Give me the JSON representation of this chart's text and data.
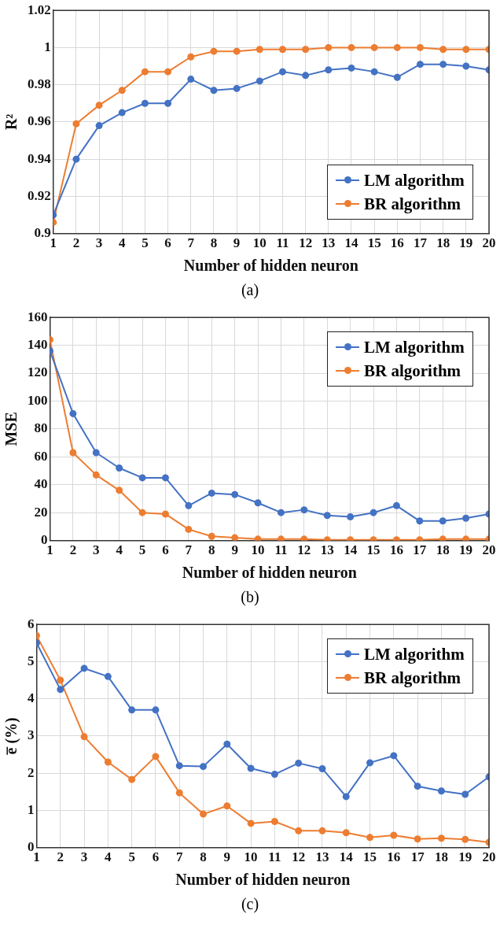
{
  "chart_data": [
    {
      "type": "line",
      "xlabel": "Number of hidden neuron",
      "ylabel": "R²",
      "annotations": [
        "(a)"
      ],
      "x": [
        1,
        2,
        3,
        4,
        5,
        6,
        7,
        8,
        9,
        10,
        11,
        12,
        13,
        14,
        15,
        16,
        17,
        18,
        19,
        20
      ],
      "xlim": [
        1,
        20
      ],
      "xticks": [
        1,
        2,
        3,
        4,
        5,
        6,
        7,
        8,
        9,
        10,
        11,
        12,
        13,
        14,
        15,
        16,
        17,
        18,
        19,
        20
      ],
      "ylim": [
        0.9,
        1.02
      ],
      "yticks": [
        0.9,
        0.92,
        0.94,
        0.96,
        0.98,
        1,
        1.02
      ],
      "grid": true,
      "legend": "bottom right",
      "marker": "circle",
      "line_style": "solid",
      "series": [
        {
          "name": "LM algorithm",
          "color": "#4472c4",
          "values": [
            0.91,
            0.94,
            0.958,
            0.965,
            0.97,
            0.97,
            0.983,
            0.977,
            0.978,
            0.982,
            0.987,
            0.985,
            0.988,
            0.989,
            0.987,
            0.984,
            0.991,
            0.991,
            0.99,
            0.988
          ]
        },
        {
          "name": "BR algorithm",
          "color": "#ed7d31",
          "values": [
            0.906,
            0.959,
            0.969,
            0.977,
            0.987,
            0.987,
            0.995,
            0.998,
            0.998,
            0.999,
            0.999,
            0.999,
            1.0,
            1.0,
            1.0,
            1.0,
            1.0,
            0.999,
            0.999,
            0.999
          ]
        }
      ]
    },
    {
      "type": "line",
      "xlabel": "Number of hidden neuron",
      "ylabel": "MSE",
      "annotations": [
        "(b)"
      ],
      "x": [
        1,
        2,
        3,
        4,
        5,
        6,
        7,
        8,
        9,
        10,
        11,
        12,
        13,
        14,
        15,
        16,
        17,
        18,
        19,
        20
      ],
      "xlim": [
        1,
        20
      ],
      "xticks": [
        1,
        2,
        3,
        4,
        5,
        6,
        7,
        8,
        9,
        10,
        11,
        12,
        13,
        14,
        15,
        16,
        17,
        18,
        19,
        20
      ],
      "ylim": [
        0,
        160
      ],
      "yticks": [
        0,
        20,
        40,
        60,
        80,
        100,
        120,
        140,
        160
      ],
      "grid": true,
      "legend": "top right",
      "marker": "circle",
      "line_style": "solid",
      "series": [
        {
          "name": "LM algorithm",
          "color": "#4472c4",
          "values": [
            136,
            91,
            63,
            52,
            45,
            45,
            25,
            34,
            33,
            27,
            20,
            22,
            18,
            17,
            20,
            25,
            14,
            14,
            16,
            19
          ]
        },
        {
          "name": "BR algorithm",
          "color": "#ed7d31",
          "values": [
            144,
            63,
            47,
            36,
            20,
            19,
            8,
            3,
            2,
            1,
            1,
            1,
            0.5,
            0.5,
            0.5,
            0.5,
            0.5,
            1,
            1,
            1
          ]
        }
      ]
    },
    {
      "type": "line",
      "xlabel": "Number of hidden neuron",
      "ylabel": "e̅ (%)",
      "annotations": [
        "(c)"
      ],
      "x": [
        1,
        2,
        3,
        4,
        5,
        6,
        7,
        8,
        9,
        10,
        11,
        12,
        13,
        14,
        15,
        16,
        17,
        18,
        19,
        20
      ],
      "xlim": [
        1,
        20
      ],
      "xticks": [
        1,
        2,
        3,
        4,
        5,
        6,
        7,
        8,
        9,
        10,
        11,
        12,
        13,
        14,
        15,
        16,
        17,
        18,
        19,
        20
      ],
      "ylim": [
        0,
        6
      ],
      "yticks": [
        0,
        1,
        2,
        3,
        4,
        5,
        6
      ],
      "grid": true,
      "legend": "top right",
      "marker": "circle",
      "line_style": "solid",
      "series": [
        {
          "name": "LM algorithm",
          "color": "#4472c4",
          "values": [
            5.5,
            4.25,
            4.82,
            4.6,
            3.7,
            3.7,
            2.2,
            2.18,
            2.78,
            2.13,
            1.97,
            2.27,
            2.12,
            1.37,
            2.28,
            2.47,
            1.65,
            1.52,
            1.43,
            1.9
          ]
        },
        {
          "name": "BR algorithm",
          "color": "#ed7d31",
          "values": [
            5.7,
            4.5,
            2.98,
            2.3,
            1.83,
            2.45,
            1.47,
            0.9,
            1.12,
            0.65,
            0.7,
            0.45,
            0.45,
            0.4,
            0.27,
            0.33,
            0.23,
            0.25,
            0.22,
            0.14
          ]
        }
      ]
    }
  ]
}
